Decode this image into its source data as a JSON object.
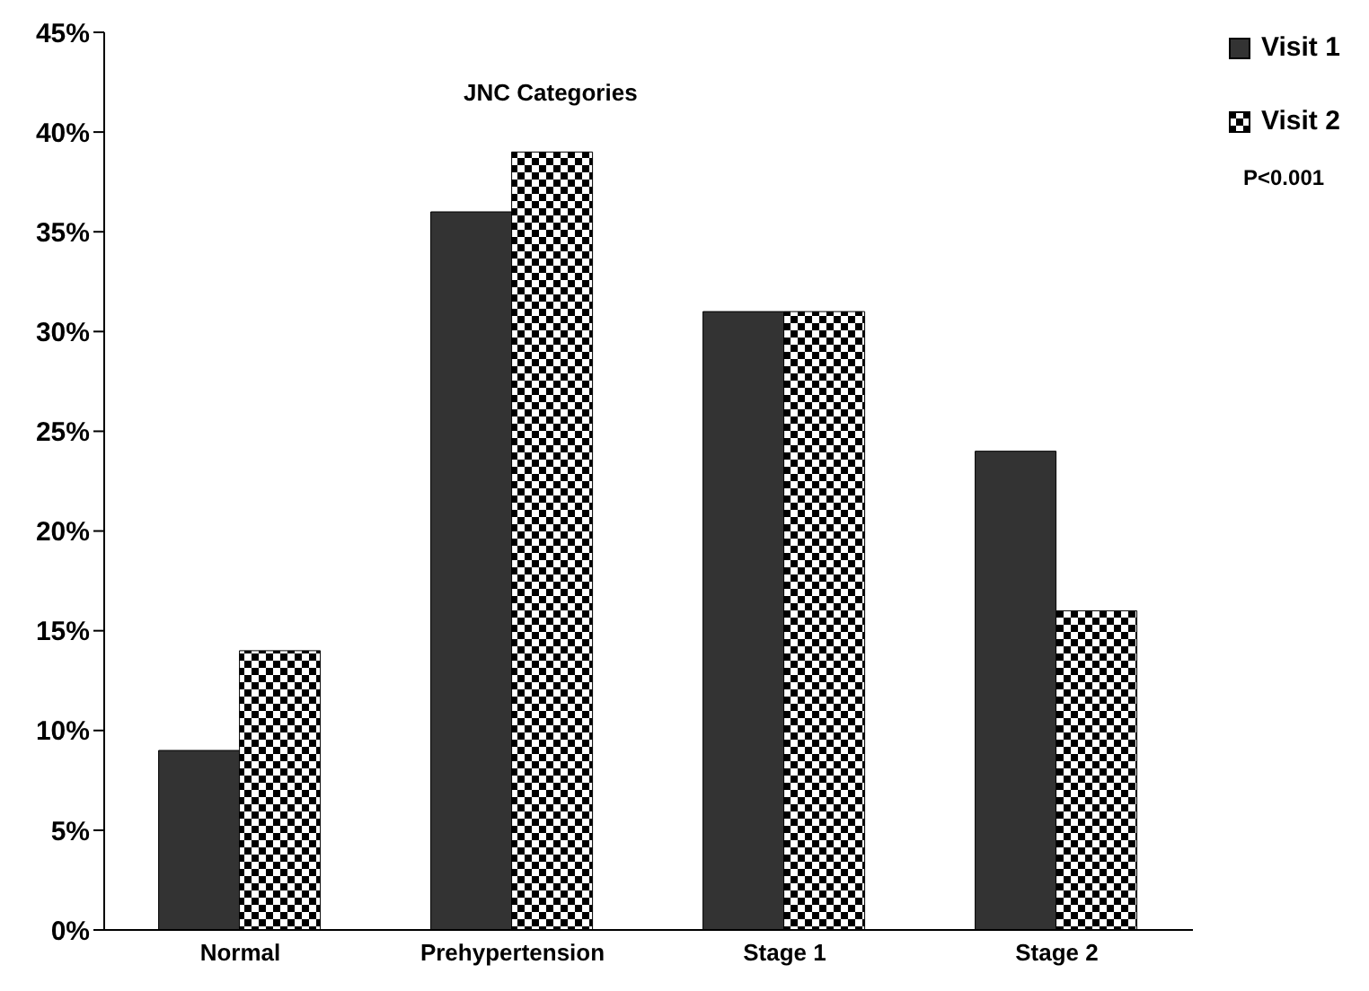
{
  "chart_data": {
    "type": "bar",
    "title": "JNC Categories",
    "categories": [
      "Normal",
      "Prehypertension",
      "Stage 1",
      "Stage 2"
    ],
    "series": [
      {
        "name": "Visit 1",
        "color": "#333333",
        "values": [
          9,
          36,
          31,
          24
        ]
      },
      {
        "name": "Visit 2",
        "color": "#000000",
        "values": [
          14,
          39,
          31,
          16
        ]
      }
    ],
    "ylim": [
      0,
      45
    ],
    "yticks": [
      {
        "value": 0,
        "label": "0%"
      },
      {
        "value": 5,
        "label": "5%"
      },
      {
        "value": 10,
        "label": "10%"
      },
      {
        "value": 15,
        "label": "15%"
      },
      {
        "value": 20,
        "label": "20%"
      },
      {
        "value": 25,
        "label": "25%"
      },
      {
        "value": 30,
        "label": "30%"
      },
      {
        "value": 35,
        "label": "35%"
      },
      {
        "value": 40,
        "label": "40%"
      },
      {
        "value": 45,
        "label": "45%"
      }
    ],
    "grid": false,
    "legend": "top right",
    "annotations": [
      "P<0.001"
    ]
  }
}
